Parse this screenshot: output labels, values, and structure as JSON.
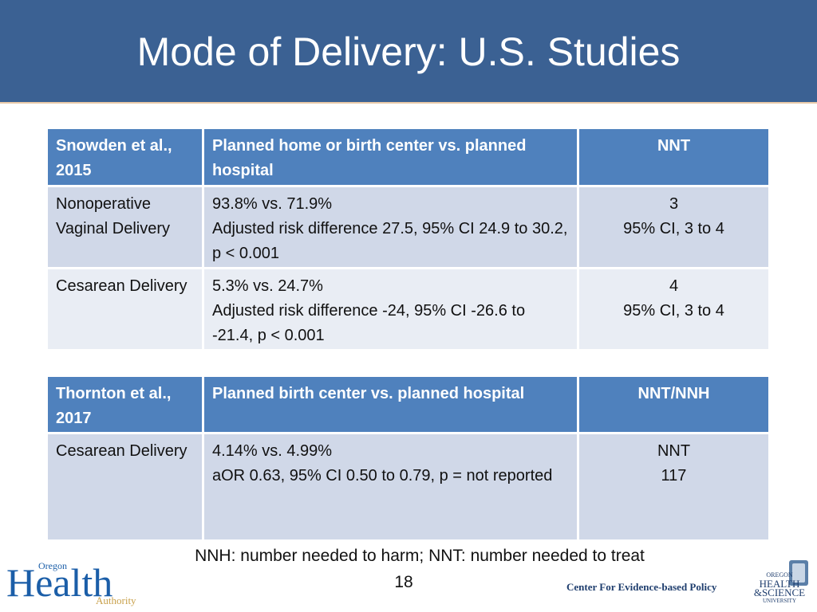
{
  "header": {
    "title": "Mode of Delivery: U.S. Studies"
  },
  "tables": [
    {
      "header": [
        [
          "Snowden et al., 2015"
        ],
        [
          "Planned home or birth center vs. planned hospital"
        ],
        [
          "NNT"
        ]
      ],
      "rows": [
        [
          [
            "Nonoperative Vaginal Delivery"
          ],
          [
            "93.8% vs. 71.9%",
            "Adjusted risk difference 27.5, 95% CI 24.9 to 30.2, p < 0.001"
          ],
          [
            "3",
            "95% CI, 3 to 4"
          ]
        ],
        [
          [
            "Cesarean Delivery"
          ],
          [
            "5.3% vs. 24.7%",
            "Adjusted risk difference -24, 95% CI -26.6 to -21.4, p < 0.001"
          ],
          [
            "4",
            "95% CI, 3 to 4"
          ]
        ]
      ]
    },
    {
      "header": [
        [
          "Thornton et al., 2017"
        ],
        [
          "Planned birth center vs. planned hospital"
        ],
        [
          "NNT/NNH"
        ]
      ],
      "rows": [
        [
          [
            "Cesarean Delivery"
          ],
          [
            "4.14% vs. 4.99%",
            "aOR 0.63, 95% CI 0.50 to 0.79, p = not reported"
          ],
          [
            "NNT",
            "117"
          ]
        ]
      ]
    }
  ],
  "footnote": "NNH: number needed to harm; NNT: number needed to treat",
  "page_number": "18",
  "footer": {
    "center": "Center For Evidence-based Policy",
    "oha_logo": {
      "top": "Oregon",
      "main": "Health",
      "bottom": "Authority"
    },
    "ohsu_logo": [
      "OREGON",
      "HEALTH",
      "&SCIENCE",
      "UNIVERSITY"
    ]
  }
}
